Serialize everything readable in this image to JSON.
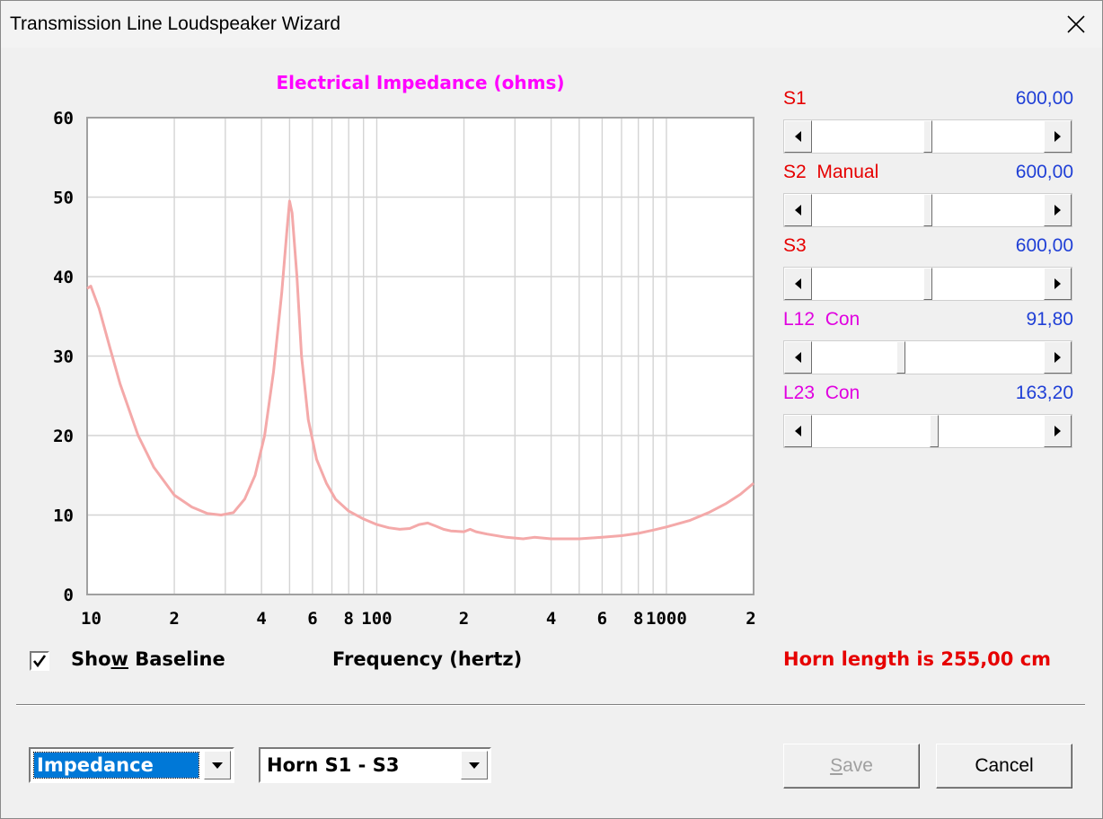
{
  "window": {
    "title": "Transmission Line Loudspeaker Wizard"
  },
  "colors": {
    "chart_title": "#ff00ff",
    "curve": "#f4a9a9",
    "param_red": "#e60000",
    "param_magenta": "#e000e0",
    "value_blue": "#1f3fd6",
    "horn_text": "#e60000",
    "selection": "#0078d7"
  },
  "chart_data": {
    "type": "line",
    "title": "Electrical Impedance (ohms)",
    "xlabel": "Frequency (hertz)",
    "ylabel": "",
    "x_scale": "log",
    "xlim": [
      10,
      2000
    ],
    "ylim": [
      0,
      60
    ],
    "grid": true,
    "y_ticks": [
      "0",
      "10",
      "20",
      "30",
      "40",
      "50",
      "60"
    ],
    "x_ticks": [
      {
        "value": 10,
        "label": "10"
      },
      {
        "value": 20,
        "label": "2"
      },
      {
        "value": 40,
        "label": "4"
      },
      {
        "value": 60,
        "label": "6"
      },
      {
        "value": 80,
        "label": "8"
      },
      {
        "value": 100,
        "label": "100"
      },
      {
        "value": 200,
        "label": "2"
      },
      {
        "value": 400,
        "label": "4"
      },
      {
        "value": 600,
        "label": "6"
      },
      {
        "value": 800,
        "label": "8"
      },
      {
        "value": 1000,
        "label": "1000"
      },
      {
        "value": 2000,
        "label": "2"
      }
    ],
    "series": [
      {
        "x": [
          10,
          10.3,
          11,
          12,
          13,
          15,
          17,
          20,
          23,
          26,
          29,
          32,
          35,
          38,
          41,
          44,
          47,
          49,
          50,
          51,
          53,
          55,
          58,
          62,
          67,
          72,
          80,
          90,
          100,
          110,
          120,
          130,
          140,
          150,
          160,
          170,
          180,
          200,
          210,
          220,
          240,
          280,
          320,
          350,
          400,
          450,
          500,
          600,
          700,
          800,
          900,
          1000,
          1200,
          1400,
          1600,
          1800,
          2000
        ],
        "y": [
          38.5,
          38.8,
          36.0,
          31.0,
          26.5,
          20.0,
          16.0,
          12.5,
          11.0,
          10.2,
          10.0,
          10.3,
          12.0,
          15.0,
          20.0,
          28.0,
          38.0,
          46.0,
          49.5,
          48.0,
          40.0,
          30.0,
          22.0,
          17.0,
          14.0,
          12.0,
          10.5,
          9.5,
          8.8,
          8.4,
          8.2,
          8.3,
          8.8,
          9.0,
          8.6,
          8.2,
          8.0,
          7.9,
          8.2,
          7.9,
          7.6,
          7.2,
          7.0,
          7.2,
          7.0,
          7.0,
          7.0,
          7.2,
          7.4,
          7.7,
          8.1,
          8.5,
          9.3,
          10.3,
          11.4,
          12.6,
          14.0
        ]
      }
    ]
  },
  "params": [
    {
      "name": "S1",
      "value": "600,00",
      "fraction": 0.5,
      "label_color": "param_red"
    },
    {
      "name": "S2  Manual",
      "value": "600,00",
      "fraction": 0.5,
      "label_color": "param_red"
    },
    {
      "name": "S3",
      "value": "600,00",
      "fraction": 0.5,
      "label_color": "param_red"
    },
    {
      "name": "L12  Con",
      "value": "91,80",
      "fraction": 0.38,
      "label_color": "param_magenta"
    },
    {
      "name": "L23  Con",
      "value": "163,20",
      "fraction": 0.53,
      "label_color": "param_magenta"
    }
  ],
  "show_baseline": {
    "label_before": "Sho",
    "label_underlined": "w",
    "label_after": " Baseline",
    "checked": true
  },
  "horn_length_text": "Horn length is 255,00 cm",
  "combo_mode": {
    "value": "Impedance"
  },
  "combo_section": {
    "value": "Horn S1 - S3"
  },
  "buttons": {
    "save_underlined": "S",
    "save_rest": "ave",
    "save_enabled": false,
    "cancel": "Cancel"
  }
}
